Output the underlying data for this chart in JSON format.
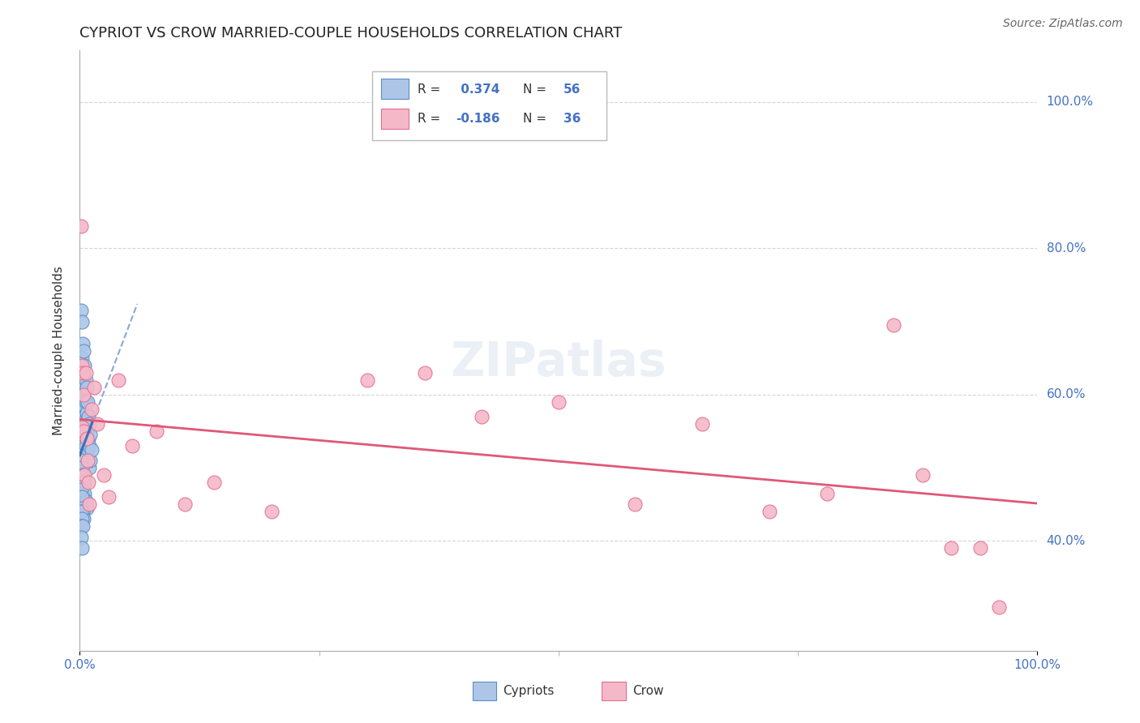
{
  "title": "CYPRIOT VS CROW MARRIED-COUPLE HOUSEHOLDS CORRELATION CHART",
  "source": "Source: ZipAtlas.com",
  "ylabel": "Married-couple Households",
  "cypriot_R": 0.374,
  "cypriot_N": 56,
  "crow_R": -0.186,
  "crow_N": 36,
  "cypriot_color": "#adc6e8",
  "cypriot_edge_color": "#5b8ec4",
  "cypriot_line_color": "#3a6fba",
  "crow_color": "#f5b8c8",
  "crow_edge_color": "#e07090",
  "crow_line_color": "#e05878",
  "y_tick_positions": [
    0.4,
    0.6,
    0.8,
    1.0
  ],
  "y_tick_labels": [
    "40.0%",
    "60.0%",
    "80.0%",
    "100.0%"
  ],
  "x_tick_positions": [
    0.0,
    1.0
  ],
  "x_tick_labels": [
    "0.0%",
    "100.0%"
  ],
  "xlim": [
    0.0,
    1.0
  ],
  "ylim": [
    0.25,
    1.07
  ],
  "cypriot_x": [
    0.001,
    0.001,
    0.001,
    0.002,
    0.002,
    0.002,
    0.002,
    0.003,
    0.003,
    0.003,
    0.003,
    0.004,
    0.004,
    0.004,
    0.004,
    0.005,
    0.005,
    0.005,
    0.006,
    0.006,
    0.006,
    0.006,
    0.007,
    0.007,
    0.007,
    0.008,
    0.008,
    0.008,
    0.009,
    0.009,
    0.01,
    0.01,
    0.01,
    0.011,
    0.011,
    0.012,
    0.001,
    0.002,
    0.003,
    0.003,
    0.004,
    0.005,
    0.005,
    0.006,
    0.007,
    0.001,
    0.002,
    0.002,
    0.003,
    0.004,
    0.001,
    0.002,
    0.001,
    0.003,
    0.001,
    0.002
  ],
  "cypriot_y": [
    0.715,
    0.53,
    0.49,
    0.7,
    0.65,
    0.59,
    0.54,
    0.67,
    0.63,
    0.58,
    0.545,
    0.66,
    0.62,
    0.57,
    0.53,
    0.64,
    0.61,
    0.57,
    0.62,
    0.59,
    0.565,
    0.53,
    0.61,
    0.575,
    0.55,
    0.59,
    0.555,
    0.525,
    0.57,
    0.54,
    0.56,
    0.53,
    0.5,
    0.545,
    0.51,
    0.525,
    0.51,
    0.5,
    0.49,
    0.475,
    0.46,
    0.48,
    0.465,
    0.455,
    0.445,
    0.47,
    0.46,
    0.445,
    0.44,
    0.43,
    0.44,
    0.43,
    0.42,
    0.42,
    0.405,
    0.39
  ],
  "crow_x": [
    0.001,
    0.002,
    0.002,
    0.003,
    0.004,
    0.004,
    0.005,
    0.006,
    0.007,
    0.008,
    0.009,
    0.01,
    0.012,
    0.015,
    0.018,
    0.025,
    0.03,
    0.04,
    0.055,
    0.08,
    0.11,
    0.14,
    0.2,
    0.3,
    0.36,
    0.42,
    0.5,
    0.58,
    0.65,
    0.72,
    0.78,
    0.85,
    0.88,
    0.91,
    0.94,
    0.96
  ],
  "crow_y": [
    0.83,
    0.64,
    0.555,
    0.63,
    0.6,
    0.55,
    0.49,
    0.63,
    0.54,
    0.51,
    0.48,
    0.45,
    0.58,
    0.61,
    0.56,
    0.49,
    0.46,
    0.62,
    0.53,
    0.55,
    0.45,
    0.48,
    0.44,
    0.62,
    0.63,
    0.57,
    0.59,
    0.45,
    0.56,
    0.44,
    0.465,
    0.695,
    0.49,
    0.39,
    0.39,
    0.31
  ],
  "grid_color": "#cccccc",
  "spine_color": "#aaaaaa",
  "title_fontsize": 13,
  "label_fontsize": 11,
  "tick_fontsize": 11,
  "source_fontsize": 10
}
